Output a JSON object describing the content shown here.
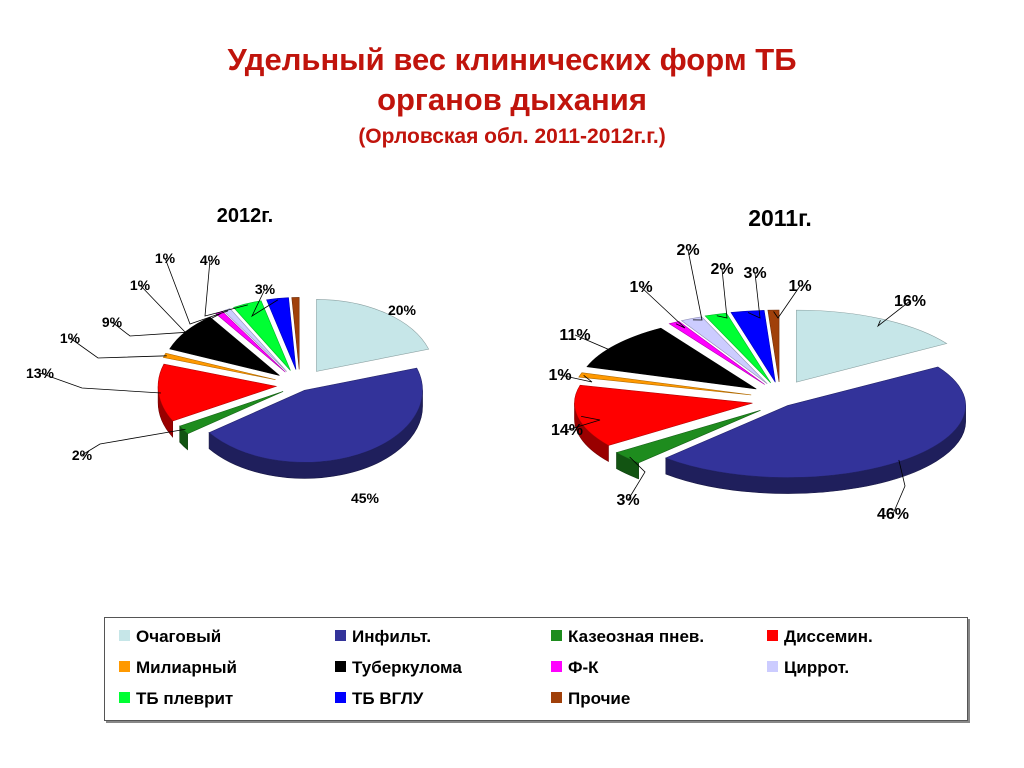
{
  "title": {
    "line1": "Удельный вес клинических форм ТБ",
    "line2": "органов дыхания",
    "subtitle": "(Орловская обл. 2011-2012г.г.)"
  },
  "legend": [
    {
      "name": "Очаговый",
      "color": "#c6e6e8"
    },
    {
      "name": "Инфильт.",
      "color": "#33339a"
    },
    {
      "name": "Казеозная пнев.",
      "color": "#1e8c1e"
    },
    {
      "name": "Диссемин.",
      "color": "#ff0000"
    },
    {
      "name": "Милиарный",
      "color": "#ff9900"
    },
    {
      "name": "Туберкулома",
      "color": "#000000"
    },
    {
      "name": "Ф-К",
      "color": "#ff00ff"
    },
    {
      "name": "Циррот.",
      "color": "#ccccff"
    },
    {
      "name": "ТБ плеврит",
      "color": "#00ff33"
    },
    {
      "name": "ТБ ВГЛУ",
      "color": "#0000ff"
    },
    {
      "name": "Прочие",
      "color": "#a0400a"
    }
  ],
  "chart_data": [
    {
      "type": "pie",
      "style": "3d-exploded",
      "title": "2012г.",
      "categories": [
        "Очаговый",
        "Инфильт.",
        "Казеозная пнев.",
        "Диссемин.",
        "Милиарный",
        "Туберкулома",
        "Ф-К",
        "Циррот.",
        "ТБ плеврит",
        "ТБ ВГЛУ",
        "Прочие"
      ],
      "values": [
        20,
        45,
        2,
        13,
        1,
        9,
        1,
        1,
        4,
        3,
        1
      ],
      "labels": [
        "20%",
        "45%",
        "2%",
        "13%",
        "1%",
        "9%",
        "1%",
        "1%",
        "4%",
        "3%",
        ""
      ]
    },
    {
      "type": "pie",
      "style": "3d-exploded",
      "title": "2011г.",
      "categories": [
        "Очаговый",
        "Инфильт.",
        "Казеозная пнев.",
        "Диссемин.",
        "Милиарный",
        "Туберкулома",
        "Ф-К",
        "Циррот.",
        "ТБ плеврит",
        "ТБ ВГЛУ",
        "Прочие"
      ],
      "values": [
        16,
        46,
        3,
        14,
        1,
        11,
        1,
        2,
        2,
        3,
        1
      ],
      "labels": [
        "16%",
        "46%",
        "3%",
        "14%",
        "1%",
        "11%",
        "1%",
        "2%",
        "2%",
        "3%",
        "1%"
      ]
    }
  ]
}
